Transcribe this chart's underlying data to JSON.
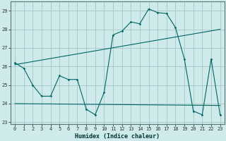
{
  "xlabel": "Humidex (Indice chaleur)",
  "bg_color": "#ceeaea",
  "grid_color": "#a8cccc",
  "line_color": "#006666",
  "xlim": [
    -0.5,
    23.5
  ],
  "ylim": [
    22.9,
    29.5
  ],
  "yticks": [
    23,
    24,
    25,
    26,
    27,
    28,
    29
  ],
  "xticks": [
    0,
    1,
    2,
    3,
    4,
    5,
    6,
    7,
    8,
    9,
    10,
    11,
    12,
    13,
    14,
    15,
    16,
    17,
    18,
    19,
    20,
    21,
    22,
    23
  ],
  "series1_x": [
    0,
    1,
    2,
    3,
    4,
    5,
    6,
    7,
    8,
    9,
    10,
    11,
    12,
    13,
    14,
    15,
    16,
    17,
    18,
    19,
    20,
    21,
    22,
    23
  ],
  "series1_y": [
    26.2,
    25.9,
    25.0,
    24.4,
    24.4,
    25.5,
    25.3,
    25.3,
    23.7,
    23.4,
    24.6,
    27.7,
    27.9,
    28.4,
    28.3,
    29.1,
    28.9,
    28.85,
    28.1,
    26.4,
    23.6,
    23.4,
    26.4,
    23.4
  ],
  "series2_x": [
    0,
    23
  ],
  "series2_y": [
    26.1,
    28.0
  ],
  "series3_x": [
    0,
    23
  ],
  "series3_y": [
    24.0,
    23.9
  ]
}
